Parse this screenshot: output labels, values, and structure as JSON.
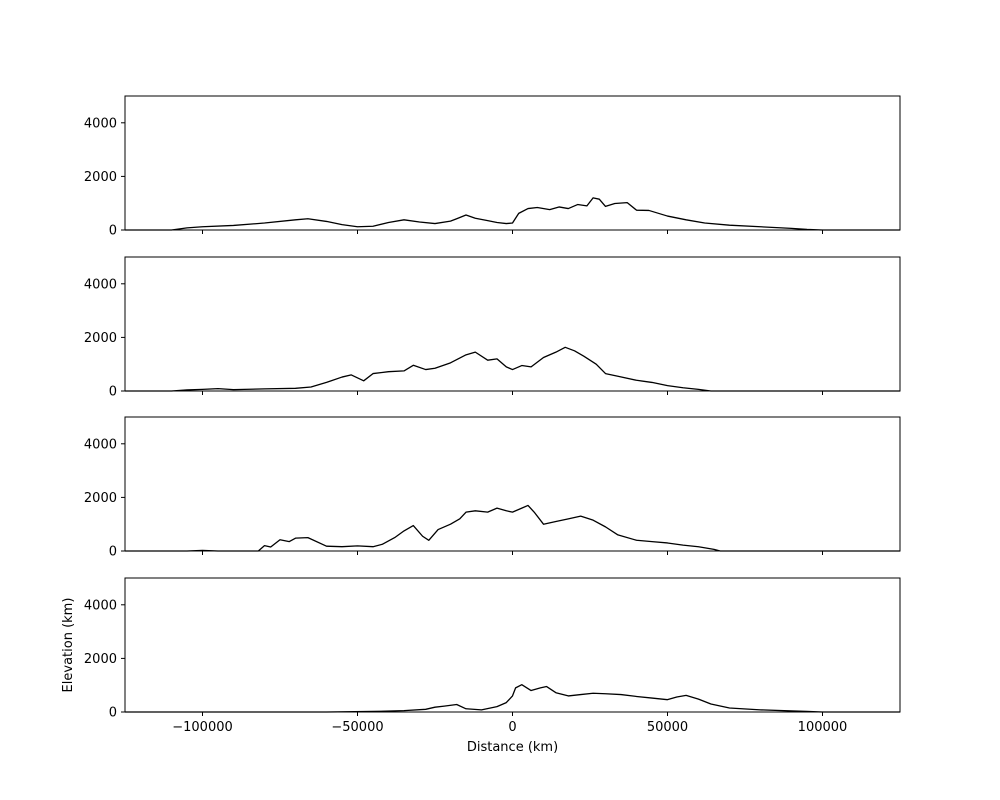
{
  "chart_data": [
    {
      "type": "line",
      "panel": 1,
      "xlim": [
        -125000,
        125000
      ],
      "ylim": [
        0,
        5000
      ],
      "yticks": [
        0,
        2000,
        4000
      ],
      "ytick_labels": [
        "0",
        "2000",
        "4000"
      ],
      "xlabel": "",
      "ylabel": "",
      "line_color": "#000000",
      "series": [
        {
          "x": [
            -125000,
            -110000,
            -105000,
            -100000,
            -90000,
            -80000,
            -70000,
            -66000,
            -60000,
            -55000,
            -50000,
            -45000,
            -40000,
            -35000,
            -30000,
            -25000,
            -20000,
            -18000,
            -15000,
            -12000,
            -8000,
            -5000,
            -2000,
            0,
            2000,
            5000,
            8000,
            12000,
            15000,
            18000,
            21000,
            24000,
            26000,
            28000,
            30000,
            33000,
            37000,
            40000,
            44000,
            50000,
            56000,
            62000,
            70000,
            80000,
            90000,
            95000,
            100000,
            125000
          ],
          "y": [
            0,
            0,
            80,
            120,
            170,
            260,
            380,
            420,
            320,
            200,
            120,
            140,
            280,
            380,
            300,
            240,
            330,
            420,
            560,
            440,
            350,
            280,
            240,
            260,
            620,
            800,
            840,
            760,
            860,
            800,
            950,
            900,
            1200,
            1150,
            880,
            990,
            1020,
            740,
            730,
            520,
            380,
            260,
            180,
            120,
            60,
            20,
            0,
            0
          ]
        }
      ]
    },
    {
      "type": "line",
      "panel": 2,
      "xlim": [
        -125000,
        125000
      ],
      "ylim": [
        0,
        5000
      ],
      "yticks": [
        0,
        2000,
        4000
      ],
      "ytick_labels": [
        "0",
        "2000",
        "4000"
      ],
      "xlabel": "",
      "ylabel": "",
      "line_color": "#000000",
      "series": [
        {
          "x": [
            -125000,
            -110000,
            -105000,
            -100000,
            -95000,
            -90000,
            -80000,
            -70000,
            -65000,
            -60000,
            -55000,
            -52000,
            -48000,
            -45000,
            -40000,
            -35000,
            -32000,
            -28000,
            -25000,
            -20000,
            -15000,
            -12000,
            -8000,
            -5000,
            -2000,
            0,
            3000,
            6000,
            10000,
            14000,
            17000,
            20000,
            23000,
            27000,
            30000,
            34000,
            40000,
            45000,
            50000,
            55000,
            60000,
            64000,
            125000
          ],
          "y": [
            0,
            0,
            40,
            60,
            90,
            50,
            80,
            100,
            150,
            320,
            520,
            600,
            380,
            650,
            720,
            750,
            960,
            800,
            850,
            1050,
            1350,
            1450,
            1150,
            1200,
            900,
            800,
            950,
            900,
            1250,
            1450,
            1630,
            1500,
            1300,
            1000,
            650,
            550,
            400,
            320,
            200,
            120,
            60,
            0,
            0
          ]
        }
      ]
    },
    {
      "type": "line",
      "panel": 3,
      "xlim": [
        -125000,
        125000
      ],
      "ylim": [
        0,
        5000
      ],
      "yticks": [
        0,
        2000,
        4000
      ],
      "ytick_labels": [
        "0",
        "2000",
        "4000"
      ],
      "xlabel": "",
      "ylabel": "",
      "line_color": "#000000",
      "series": [
        {
          "x": [
            -125000,
            -105000,
            -100000,
            -95000,
            -82000,
            -80000,
            -78000,
            -75000,
            -72000,
            -70000,
            -66000,
            -60000,
            -55000,
            -50000,
            -45000,
            -42000,
            -38000,
            -35000,
            -32000,
            -29000,
            -27000,
            -24000,
            -20000,
            -17000,
            -15000,
            -12000,
            -8000,
            -5000,
            -2000,
            0,
            3000,
            5000,
            7000,
            10000,
            14000,
            18000,
            22000,
            26000,
            30000,
            34000,
            40000,
            45000,
            50000,
            55000,
            60000,
            65000,
            67000,
            125000
          ],
          "y": [
            0,
            0,
            20,
            0,
            0,
            200,
            150,
            420,
            350,
            480,
            500,
            180,
            160,
            190,
            160,
            250,
            500,
            750,
            950,
            550,
            400,
            800,
            1000,
            1200,
            1450,
            1500,
            1450,
            1600,
            1500,
            1450,
            1600,
            1700,
            1450,
            1000,
            1100,
            1200,
            1300,
            1150,
            900,
            600,
            400,
            350,
            300,
            220,
            160,
            60,
            0,
            0
          ]
        }
      ]
    },
    {
      "type": "line",
      "panel": 4,
      "xlim": [
        -125000,
        125000
      ],
      "ylim": [
        0,
        5000
      ],
      "yticks": [
        0,
        2000,
        4000
      ],
      "ytick_labels": [
        "0",
        "2000",
        "4000"
      ],
      "xlabel": "Distance (km)",
      "ylabel": "Elevation (km)",
      "xticks": [
        -100000,
        -50000,
        0,
        50000,
        100000
      ],
      "xtick_labels": [
        "−100000",
        "−50000",
        "0",
        "50000",
        "100000"
      ],
      "line_color": "#000000",
      "series": [
        {
          "x": [
            -125000,
            -60000,
            -45000,
            -35000,
            -28000,
            -25000,
            -22000,
            -18000,
            -15000,
            -10000,
            -5000,
            -2000,
            0,
            1000,
            3000,
            6000,
            9000,
            11000,
            14000,
            18000,
            22000,
            26000,
            30000,
            35000,
            40000,
            45000,
            50000,
            53000,
            56000,
            60000,
            64000,
            70000,
            80000,
            90000,
            95000,
            100000,
            125000
          ],
          "y": [
            0,
            0,
            20,
            50,
            100,
            180,
            220,
            280,
            120,
            80,
            200,
            350,
            600,
            900,
            1020,
            800,
            900,
            950,
            720,
            600,
            650,
            700,
            680,
            650,
            580,
            520,
            460,
            560,
            620,
            480,
            300,
            150,
            80,
            40,
            20,
            0,
            0
          ]
        }
      ]
    }
  ]
}
